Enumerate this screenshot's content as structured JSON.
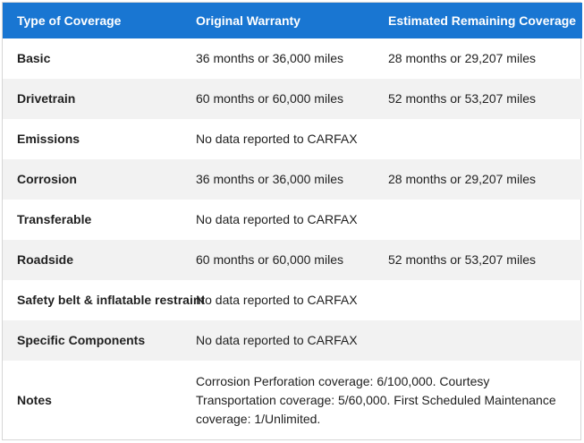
{
  "headers": {
    "type": "Type of Coverage",
    "original": "Original Warranty",
    "remaining": "Estimated Remaining Coverage"
  },
  "rows": [
    {
      "type": "Basic",
      "original": "36 months or 36,000 miles",
      "remaining": "28 months or 29,207 miles"
    },
    {
      "type": "Drivetrain",
      "original": "60 months or 60,000 miles",
      "remaining": "52 months or 53,207 miles"
    },
    {
      "type": "Emissions",
      "original": "No data reported to CARFAX",
      "remaining": ""
    },
    {
      "type": "Corrosion",
      "original": "36 months or 36,000 miles",
      "remaining": "28 months or 29,207 miles"
    },
    {
      "type": "Transferable",
      "original": "No data reported to CARFAX",
      "remaining": ""
    },
    {
      "type": "Roadside",
      "original": "60 months or 60,000 miles",
      "remaining": "52 months or 53,207 miles"
    },
    {
      "type": "Safety belt & inflatable restraint",
      "original": "No data reported to CARFAX",
      "remaining": ""
    },
    {
      "type": "Specific Components",
      "original": "No data reported to CARFAX",
      "remaining": ""
    }
  ],
  "notes": {
    "type": "Notes",
    "text": "Corrosion Perforation coverage: 6/100,000. Courtesy Transportation coverage: 5/60,000. First Scheduled Maintenance coverage: 1/Unlimited."
  },
  "colors": {
    "header_bg": "#1976d2",
    "stripe": "#f2f2f2"
  }
}
